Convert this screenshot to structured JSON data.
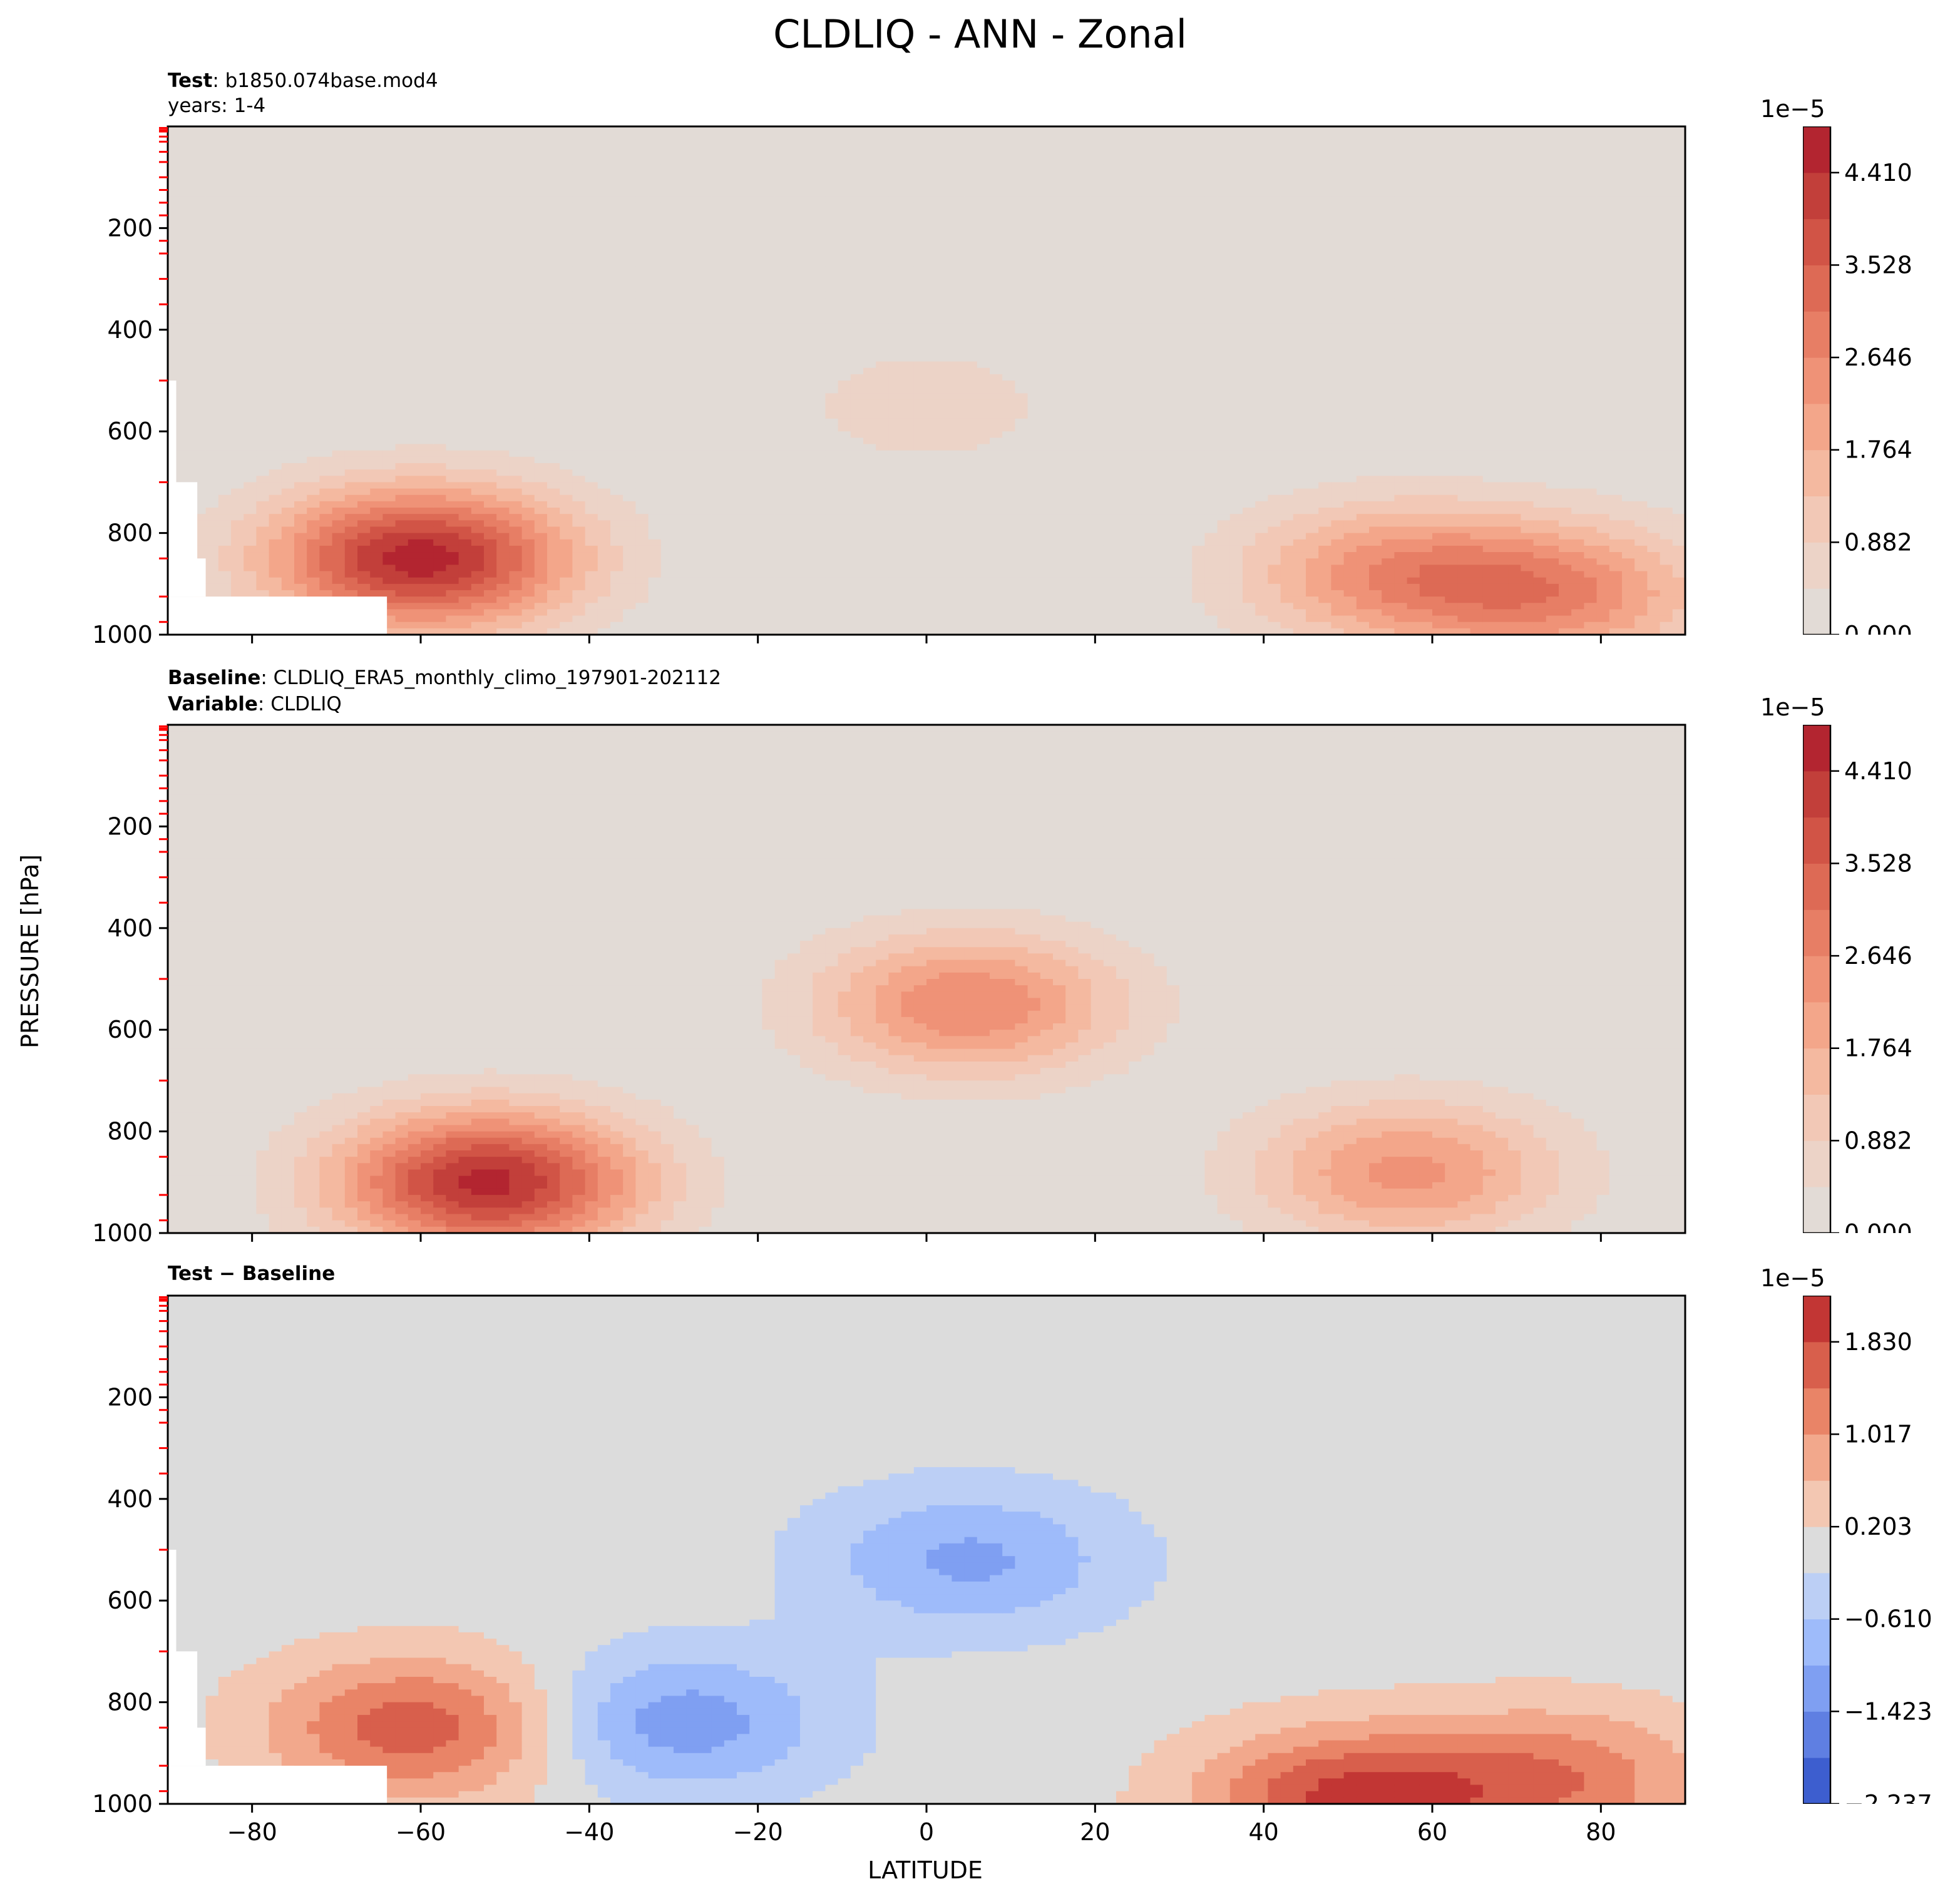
{
  "title": "CLDLIQ - ANN - Zonal",
  "ylabel": "PRESSURE [hPa]",
  "xlabel": "LATITUDE",
  "panels": [
    {
      "key": "test",
      "sub1_bold": "Test",
      "sub1_text": ": b1850.074base.mod4",
      "sub2_bold": "",
      "sub2_text": "years: 1-4"
    },
    {
      "key": "baseline",
      "sub1_bold": "Baseline",
      "sub1_text": ": CLDLIQ_ERA5_monthly_climo_197901-202112",
      "sub2_bold": "Variable",
      "sub2_text": ": CLDLIQ"
    },
    {
      "key": "diff",
      "sub1_bold": "Test − Baseline",
      "sub1_text": "",
      "sub2_bold": "",
      "sub2_text": ""
    }
  ],
  "chart_data": {
    "type": "heatmap",
    "xlim": [
      -90,
      90
    ],
    "ylim": [
      1000,
      0
    ],
    "xticks": [
      -80,
      -60,
      -40,
      -20,
      0,
      20,
      40,
      60,
      80
    ],
    "yticks": [
      200,
      400,
      600,
      800,
      1000
    ],
    "y_minor_red_ticks": [
      3,
      7,
      10,
      20,
      30,
      50,
      70,
      100,
      125,
      150,
      175,
      225,
      250,
      300,
      350,
      500,
      700,
      850,
      925,
      975
    ],
    "colorbar_exponent": "1e−5",
    "test": {
      "colormap": "Reds (light gray at 0)",
      "levels": [
        0.0,
        0.441,
        0.882,
        1.323,
        1.764,
        2.205,
        2.646,
        3.087,
        3.528,
        3.969,
        4.41,
        4.851
      ],
      "colorbar_tick_labels": [
        "0.000",
        "0.882",
        "1.764",
        "2.646",
        "3.528",
        "4.410"
      ],
      "colorbar_ticks": [
        0.0,
        0.882,
        1.764,
        2.646,
        3.528,
        4.41
      ],
      "cloud_features": [
        {
          "lat": -60,
          "p": 850,
          "value": 4.6
        },
        {
          "lat": 55,
          "p": 880,
          "value": 2.2
        },
        {
          "lat": 75,
          "p": 920,
          "value": 2.4
        },
        {
          "lat": 0,
          "p": 550,
          "value": 0.6
        }
      ],
      "missing_region": "lat < -64 near surface, lat < -89 below 500 hPa"
    },
    "baseline": {
      "colormap": "Reds (light gray at 0)",
      "levels": [
        0.0,
        0.441,
        0.882,
        1.323,
        1.764,
        2.205,
        2.646,
        3.087,
        3.528,
        3.969,
        4.41,
        4.851
      ],
      "colorbar_tick_labels": [
        "0.000",
        "0.882",
        "1.764",
        "2.646",
        "3.528",
        "4.410"
      ],
      "colorbar_ticks": [
        0.0,
        0.882,
        1.764,
        2.646,
        3.528,
        4.41
      ],
      "cloud_features": [
        {
          "lat": -52,
          "p": 900,
          "value": 4.5
        },
        {
          "lat": 5,
          "p": 550,
          "value": 2.6
        },
        {
          "lat": 57,
          "p": 880,
          "value": 2.3
        }
      ]
    },
    "diff": {
      "colormap": "coolwarm (diverging)",
      "levels": [
        -2.237,
        -1.83,
        -1.423,
        -1.017,
        -0.61,
        -0.203,
        0.203,
        0.61,
        1.017,
        1.423,
        1.83,
        2.237
      ],
      "colorbar_tick_labels": [
        "−2.237",
        "−1.423",
        "−0.610",
        "0.203",
        "1.017",
        "1.830"
      ],
      "colorbar_ticks": [
        -2.237,
        -1.423,
        -0.61,
        0.203,
        1.017,
        1.83
      ],
      "cloud_features": [
        {
          "lat": -60,
          "p": 850,
          "value": 1.7
        },
        {
          "lat": -30,
          "p": 840,
          "value": -1.3
        },
        {
          "lat": 5,
          "p": 520,
          "value": -1.1
        },
        {
          "lat": 50,
          "p": 995,
          "value": 1.9
        },
        {
          "lat": 75,
          "p": 950,
          "value": 1.3
        }
      ],
      "missing_region": "lat < -64 near surface, lat < -89 below 500 hPa"
    }
  },
  "colors": {
    "zero_fill": "#e2dbd6",
    "diff_zero_fill": "#dcdcdc",
    "tick_red": "#ff0000"
  }
}
